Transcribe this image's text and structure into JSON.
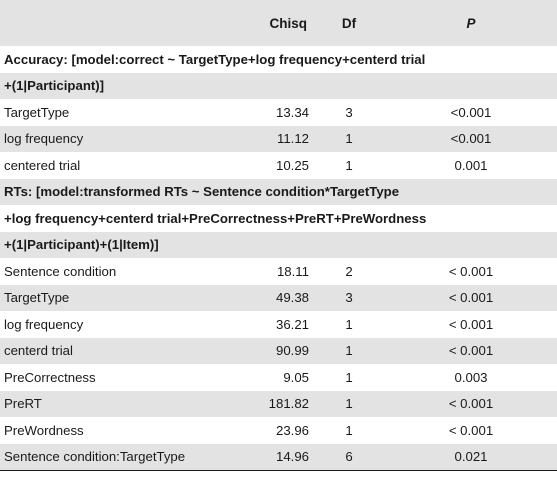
{
  "header": {
    "col_term": "",
    "col_chisq": "Chisq",
    "col_df": "Df",
    "col_p": "P"
  },
  "sections": [
    {
      "model_lines": [
        "Accuracy: [model:correct ~ TargetType+log frequency+centerd trial",
        "+(1|Participant)]"
      ],
      "rows": [
        {
          "term": "TargetType",
          "chisq": "13.34",
          "df": "3",
          "p": "<0.001"
        },
        {
          "term": "log frequency",
          "chisq": "11.12",
          "df": "1",
          "p": "<0.001"
        },
        {
          "term": "centered trial",
          "chisq": "10.25",
          "df": "1",
          "p": "0.001"
        }
      ]
    },
    {
      "model_lines": [
        "RTs: [model:transformed RTs ~ Sentence condition*TargetType",
        "+log frequency+centerd trial+PreCorrectness+PreRT+PreWordness",
        "+(1|Participant)+(1|Item)]"
      ],
      "rows": [
        {
          "term": "Sentence condition",
          "chisq": "18.11",
          "df": "2",
          "p": "< 0.001"
        },
        {
          "term": "TargetType",
          "chisq": "49.38",
          "df": "3",
          "p": "< 0.001"
        },
        {
          "term": "log frequency",
          "chisq": "36.21",
          "df": "1",
          "p": "< 0.001"
        },
        {
          "term": "centerd trial",
          "chisq": "90.99",
          "df": "1",
          "p": "< 0.001"
        },
        {
          "term": "PreCorrectness",
          "chisq": "9.05",
          "df": "1",
          "p": "0.003"
        },
        {
          "term": "PreRT",
          "chisq": "181.82",
          "df": "1",
          "p": "< 0.001"
        },
        {
          "term": "PreWordness",
          "chisq": "23.96",
          "df": "1",
          "p": "< 0.001"
        },
        {
          "term": "Sentence condition:TargetType",
          "chisq": "14.96",
          "df": "6",
          "p": "0.021"
        }
      ]
    }
  ],
  "colors": {
    "stripe": "#e3e3e3",
    "text": "#1a1a1a"
  }
}
